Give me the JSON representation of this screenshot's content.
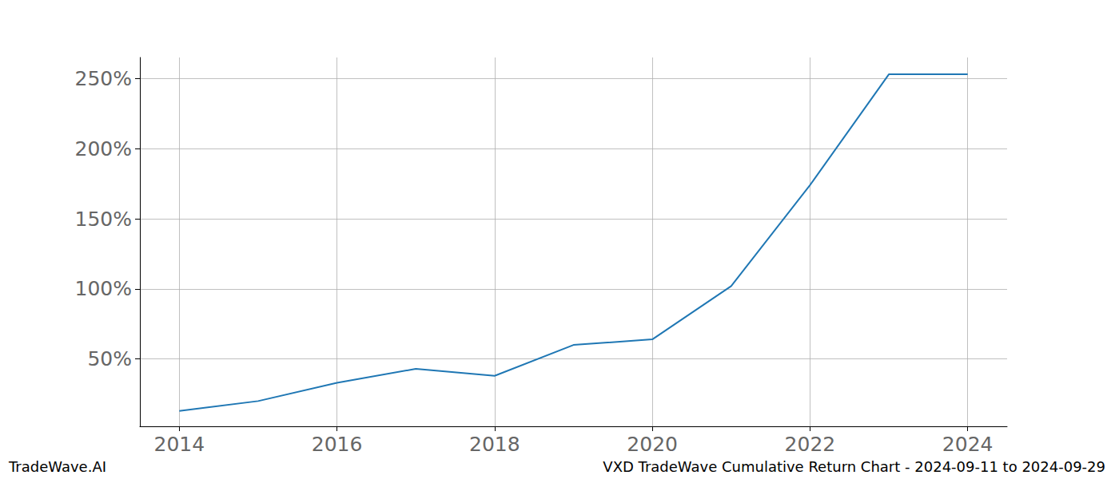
{
  "chart_data": {
    "type": "line",
    "title": "VXD TradeWave Cumulative Return Chart - 2024-09-11 to 2024-09-29",
    "annotations": [
      "TradeWave.AI"
    ],
    "x": [
      2014,
      2015,
      2016,
      2017,
      2018,
      2019,
      2020,
      2021,
      2022,
      2023,
      2024
    ],
    "values": [
      13,
      20,
      33,
      43,
      38,
      60,
      64,
      102,
      174,
      253,
      253
    ],
    "color": "#1f77b4",
    "xlim": [
      2013.5,
      2024.5
    ],
    "xticks": [
      2014,
      2016,
      2018,
      2020,
      2022,
      2024
    ],
    "ylim": [
      2,
      265
    ],
    "yticks": [
      {
        "value": 50,
        "label": "50%"
      },
      {
        "value": 100,
        "label": "100%"
      },
      {
        "value": 150,
        "label": "150%"
      },
      {
        "value": 200,
        "label": "200%"
      },
      {
        "value": 250,
        "label": "250%"
      }
    ],
    "grid": true
  }
}
